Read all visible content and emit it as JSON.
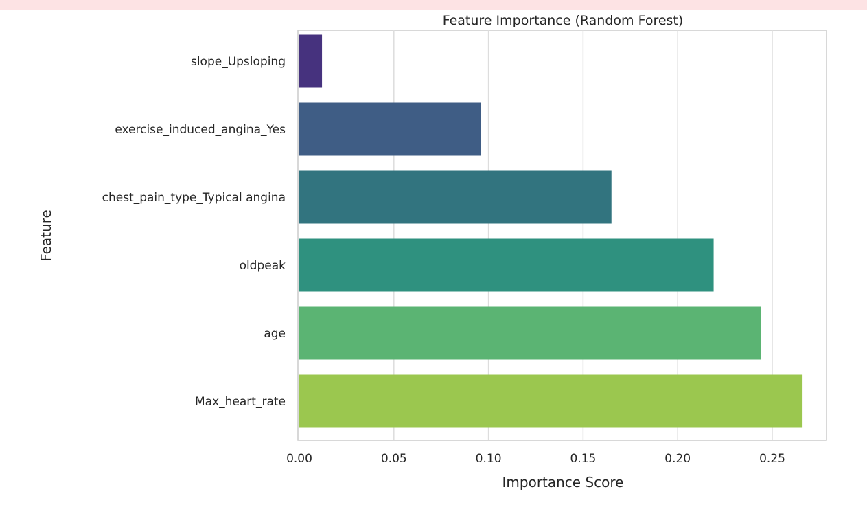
{
  "colors": {
    "warning_background": "#fde3e4",
    "plot_frame": "#cccccc",
    "gridline": "#dddddd"
  },
  "chart_data": {
    "type": "bar",
    "orientation": "horizontal",
    "title": "Feature Importance (Random Forest)",
    "xlabel": "Importance Score",
    "ylabel": "Feature",
    "categories": [
      "slope_Upsloping",
      "exercise_induced_angina_Yes",
      "chest_pain_type_Typical angina",
      "oldpeak",
      "age",
      "Max_heart_rate"
    ],
    "values": [
      0.012,
      0.096,
      0.165,
      0.219,
      0.244,
      0.266
    ],
    "bar_colors": [
      "#46327e",
      "#3f5d85",
      "#32747f",
      "#2f917f",
      "#5bb473",
      "#9bc74f"
    ],
    "xlim": [
      0,
      0.28
    ],
    "xticks": [
      "0.00",
      "0.05",
      "0.10",
      "0.15",
      "0.20",
      "0.25"
    ],
    "grid": true,
    "palette": "viridis"
  }
}
